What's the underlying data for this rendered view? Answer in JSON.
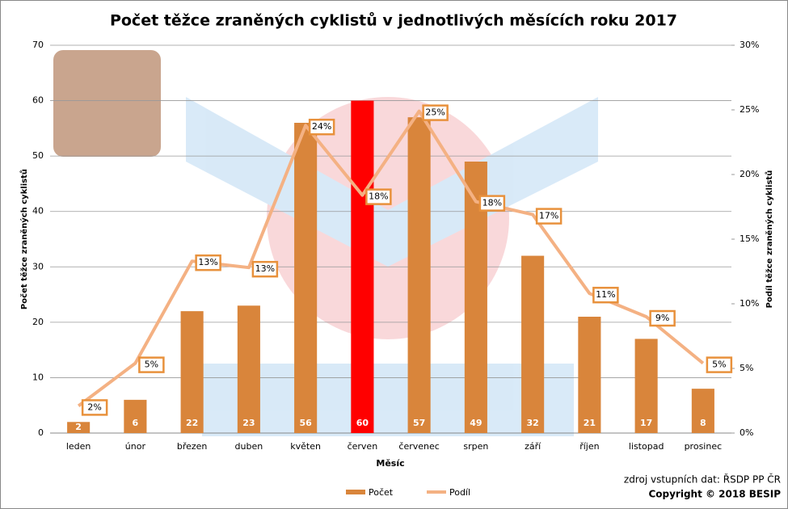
{
  "chart_data": {
    "type": "bar_line",
    "title": "Počet těžce zraněných cyklistů v jednotlivých měsících roku 2017",
    "x_label": "Měsíc",
    "y_label": "Počet těžce zraněných cyklistů",
    "y2_label": "Podíl těžce zraněných cyklistů",
    "categories": [
      "leden",
      "únor",
      "březen",
      "duben",
      "květen",
      "červen",
      "červenec",
      "srpen",
      "září",
      "říjen",
      "listopad",
      "prosinec"
    ],
    "series": [
      {
        "name": "Počet",
        "type": "bar",
        "color": "#d9853b",
        "colors": [
          "#d9853b",
          "#d9853b",
          "#d9853b",
          "#d9853b",
          "#d9853b",
          "#ff0000",
          "#d9853b",
          "#d9853b",
          "#d9853b",
          "#d9853b",
          "#d9853b",
          "#d9853b"
        ],
        "values": [
          2,
          6,
          22,
          23,
          56,
          60,
          57,
          49,
          32,
          21,
          17,
          8
        ]
      },
      {
        "name": "Podíl",
        "type": "line",
        "axis": "y2",
        "color": "#f4b183",
        "values": [
          2.1,
          5.4,
          13.3,
          12.8,
          23.8,
          18.4,
          24.9,
          17.9,
          16.9,
          10.8,
          9,
          5.4
        ],
        "value_labels": [
          "2%",
          "5%",
          "13%",
          "13%",
          "24%",
          "18%",
          "25%",
          "18%",
          "17%",
          "11%",
          "9%",
          "5%"
        ]
      }
    ],
    "ylim": [
      0,
      70
    ],
    "yticks": [
      0,
      10,
      20,
      30,
      40,
      50,
      60,
      70
    ],
    "y2lim": [
      0,
      30
    ],
    "y2ticks": [
      {
        "value": 0,
        "label": "0%"
      },
      {
        "value": 5,
        "label": "5%"
      },
      {
        "value": 10,
        "label": "10%"
      },
      {
        "value": 15,
        "label": "15%"
      },
      {
        "value": 20,
        "label": "20%"
      },
      {
        "value": 25,
        "label": "25%"
      },
      {
        "value": 30,
        "label": "30%"
      }
    ],
    "grid": true,
    "legend": "bottom",
    "source": "zdroj vstupních dat: ŘSDP PP ČR",
    "copyright": "Copyright © 2018 BESIP"
  }
}
